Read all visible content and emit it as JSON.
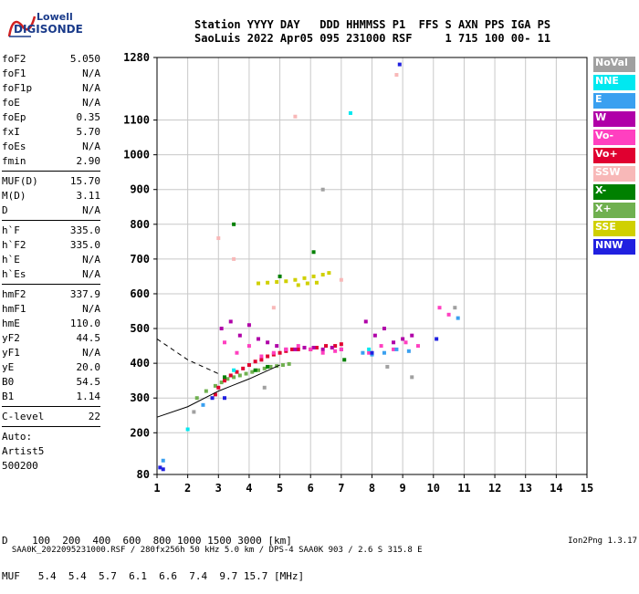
{
  "logo": {
    "line1": "Lowell",
    "line2": "DIGISONDE"
  },
  "header": {
    "line1": "Station YYYY DAY   DDD HHMMSS P1  FFS S AXN PPS IGA PS",
    "line2": "SaoLuis 2022 Apr05 095 231000 RSF     1 715 100 00- 11"
  },
  "params_group1": [
    {
      "label": "foF2",
      "value": "5.050"
    },
    {
      "label": "foF1",
      "value": "N/A"
    },
    {
      "label": "foF1p",
      "value": "N/A"
    },
    {
      "label": "foE",
      "value": "N/A"
    },
    {
      "label": "foEp",
      "value": "0.35"
    },
    {
      "label": "fxI",
      "value": "5.70"
    },
    {
      "label": "foEs",
      "value": "N/A"
    },
    {
      "label": "fmin",
      "value": "2.90"
    }
  ],
  "params_group2": [
    {
      "label": "MUF(D)",
      "value": "15.70"
    },
    {
      "label": "M(D)",
      "value": "3.11"
    },
    {
      "label": "D",
      "value": "N/A"
    }
  ],
  "params_group3": [
    {
      "label": "h`F",
      "value": "335.0"
    },
    {
      "label": "h`F2",
      "value": "335.0"
    },
    {
      "label": "h`E",
      "value": "N/A"
    },
    {
      "label": "h`Es",
      "value": "N/A"
    }
  ],
  "params_group4": [
    {
      "label": "hmF2",
      "value": "337.9"
    },
    {
      "label": "hmF1",
      "value": "N/A"
    },
    {
      "label": "hmE",
      "value": "110.0"
    },
    {
      "label": "yF2",
      "value": "44.5"
    },
    {
      "label": "yF1",
      "value": "N/A"
    },
    {
      "label": "yE",
      "value": "20.0"
    },
    {
      "label": "B0",
      "value": "54.5"
    },
    {
      "label": "B1",
      "value": "1.14"
    }
  ],
  "params_group5": [
    {
      "label": "C-level",
      "value": "22"
    }
  ],
  "autoscale": {
    "line1": "Auto:",
    "line2": "Artist5",
    "line3": "500200"
  },
  "legend": [
    {
      "label": "NoVal",
      "color": "#a0a0a0"
    },
    {
      "label": "NNE",
      "color": "#00e8f0"
    },
    {
      "label": "E",
      "color": "#3aa0f0"
    },
    {
      "label": "W",
      "color": "#b000a8"
    },
    {
      "label": "Vo-",
      "color": "#ff40c0"
    },
    {
      "label": "Vo+",
      "color": "#e00030"
    },
    {
      "label": "SSW",
      "color": "#f8b8b8"
    },
    {
      "label": "X-",
      "color": "#008000"
    },
    {
      "label": "X+",
      "color": "#70b050"
    },
    {
      "label": "SSE",
      "color": "#d0d000"
    },
    {
      "label": "NNW",
      "color": "#2020e0"
    }
  ],
  "muf_table": {
    "line1": "D    100  200  400  600  800 1000 1500 3000 [km]",
    "line2": "MUF   5.4  5.4  5.7  6.1  6.6  7.4  9.7 15.7 [MHz]"
  },
  "footer": {
    "left": "SAA0K_2022095231000.RSF / 280fx256h 50 kHz 5.0 km / DPS-4 SAA0K 903 / 2.6 S 315.8 E",
    "right": "Ion2Png 1.3.17"
  },
  "chart_data": {
    "type": "scatter",
    "title": "",
    "xlabel": "",
    "ylabel": "",
    "xlim": [
      1,
      15
    ],
    "ylim": [
      80,
      1280
    ],
    "x_ticks": [
      1,
      2,
      3,
      4,
      5,
      6,
      7,
      8,
      9,
      10,
      11,
      12,
      13,
      14,
      15
    ],
    "y_ticks": [
      80,
      200,
      300,
      400,
      500,
      600,
      700,
      800,
      900,
      1000,
      1100,
      1280
    ],
    "grid": true,
    "series": [
      {
        "name": "X+",
        "color": "#70b050",
        "x": [
          2.3,
          2.6,
          2.9,
          3.1,
          3.3,
          3.5,
          3.7,
          3.9,
          4.1,
          4.3,
          4.5,
          4.7,
          4.9,
          5.1,
          5.3
        ],
        "y": [
          300,
          320,
          335,
          345,
          355,
          360,
          365,
          370,
          375,
          380,
          385,
          390,
          392,
          395,
          398
        ]
      },
      {
        "name": "Vo+",
        "color": "#e00030",
        "x": [
          2.9,
          3.0,
          3.2,
          3.4,
          3.6,
          3.8,
          4.0,
          4.2,
          4.4,
          4.6,
          4.8,
          5.0,
          5.2,
          5.4,
          5.6,
          5.8,
          6.0,
          6.2,
          6.5,
          6.8,
          7.0
        ],
        "y": [
          310,
          330,
          350,
          365,
          375,
          385,
          395,
          405,
          410,
          420,
          425,
          430,
          435,
          440,
          440,
          445,
          440,
          445,
          450,
          450,
          455
        ]
      },
      {
        "name": "W",
        "color": "#b000a8",
        "x": [
          3.1,
          3.4,
          3.7,
          4.0,
          4.3,
          4.6,
          4.9,
          5.2,
          5.5,
          5.8,
          6.1,
          6.4,
          6.7,
          7.0,
          7.8,
          8.1,
          8.4,
          8.7,
          9.0,
          9.3
        ],
        "y": [
          500,
          520,
          480,
          510,
          470,
          460,
          450,
          440,
          440,
          445,
          445,
          440,
          445,
          440,
          520,
          480,
          500,
          460,
          470,
          480
        ]
      },
      {
        "name": "Vo-",
        "color": "#ff40c0",
        "x": [
          3.2,
          3.6,
          4.0,
          4.4,
          4.8,
          5.2,
          5.6,
          6.0,
          6.4,
          6.8,
          7.0,
          7.9,
          8.3,
          8.7,
          9.1,
          9.5,
          10.2,
          10.5
        ],
        "y": [
          460,
          430,
          450,
          420,
          430,
          440,
          450,
          440,
          430,
          435,
          440,
          430,
          450,
          440,
          460,
          450,
          560,
          540
        ]
      },
      {
        "name": "SSE",
        "color": "#d0d000",
        "x": [
          4.3,
          4.6,
          4.9,
          5.2,
          5.5,
          5.8,
          6.1,
          6.4,
          6.6,
          5.6,
          5.9,
          6.2
        ],
        "y": [
          630,
          632,
          634,
          636,
          640,
          645,
          650,
          655,
          660,
          625,
          630,
          632
        ]
      },
      {
        "name": "E",
        "color": "#3aa0f0",
        "x": [
          1.2,
          2.5,
          7.7,
          8.0,
          8.4,
          8.8,
          9.2,
          10.8
        ],
        "y": [
          120,
          280,
          430,
          425,
          430,
          440,
          435,
          530
        ]
      },
      {
        "name": "NNW",
        "color": "#2020e0",
        "x": [
          1.1,
          1.2,
          2.8,
          3.2,
          8.0,
          8.9,
          10.1
        ],
        "y": [
          100,
          95,
          300,
          300,
          430,
          1260,
          470
        ]
      },
      {
        "name": "NNE",
        "color": "#00e8f0",
        "x": [
          2.0,
          3.5,
          7.3,
          7.9
        ],
        "y": [
          210,
          380,
          1120,
          440
        ]
      },
      {
        "name": "SSW",
        "color": "#f8b8b8",
        "x": [
          3.0,
          3.5,
          4.8,
          5.5,
          7.0,
          8.8
        ],
        "y": [
          760,
          700,
          560,
          1110,
          640,
          1230
        ]
      },
      {
        "name": "X-",
        "color": "#008000",
        "x": [
          3.2,
          3.5,
          4.2,
          4.6,
          5.0,
          6.1,
          7.1
        ],
        "y": [
          360,
          800,
          380,
          390,
          650,
          720,
          410
        ]
      },
      {
        "name": "NoVal",
        "color": "#a0a0a0",
        "x": [
          2.2,
          4.5,
          6.4,
          8.5,
          9.3,
          10.7
        ],
        "y": [
          260,
          330,
          900,
          390,
          360,
          560
        ]
      }
    ],
    "curves": [
      {
        "name": "trace-solid",
        "style": "solid",
        "x": [
          1.0,
          2.0,
          3.0,
          4.0,
          5.0
        ],
        "y": [
          245,
          275,
          320,
          355,
          395
        ]
      },
      {
        "name": "trace-dashed",
        "style": "dashed",
        "x": [
          1.0,
          2.0,
          3.0
        ],
        "y": [
          470,
          410,
          370
        ]
      }
    ]
  }
}
